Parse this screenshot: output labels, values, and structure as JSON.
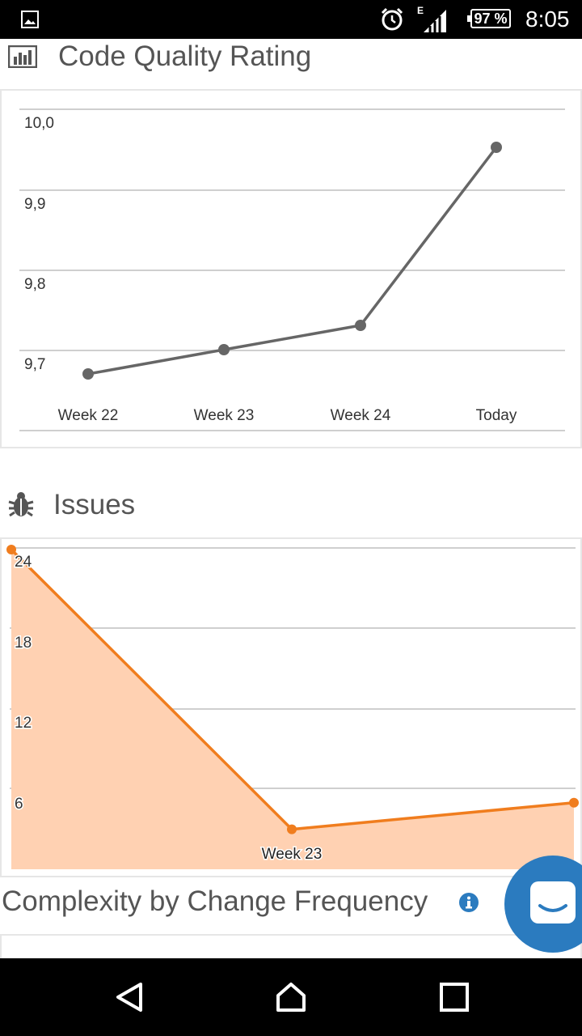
{
  "status_bar": {
    "battery": "97 %",
    "time": "8:05",
    "network_type": "E"
  },
  "sections": {
    "code_quality": {
      "title": "Code Quality Rating",
      "icon": "bar-chart-icon"
    },
    "issues": {
      "title": "Issues",
      "icon": "bug-icon"
    },
    "complexity": {
      "title": "Complexity by Change Frequency",
      "icon": "info-icon"
    }
  },
  "chart_data": [
    {
      "type": "line",
      "categories": [
        "Week 22",
        "Week 23",
        "Week 24",
        "Today"
      ],
      "values": [
        9.67,
        9.7,
        9.73,
        9.95
      ],
      "yticks": [
        "10,0",
        "9,9",
        "9,8",
        "9,7"
      ],
      "ylim": [
        9.65,
        10.0
      ],
      "color": "#666666",
      "grid": true
    },
    {
      "type": "area",
      "categories": [
        "",
        "Week 23",
        ""
      ],
      "values": [
        24,
        3,
        5
      ],
      "yticks": [
        "24",
        "18",
        "12",
        "6"
      ],
      "ylim": [
        0,
        24
      ],
      "color": "#f07d1e",
      "fill": "#ffd1b2",
      "grid": true
    }
  ],
  "nav": {
    "back": "back-icon",
    "home": "home-icon",
    "recents": "recents-icon"
  }
}
